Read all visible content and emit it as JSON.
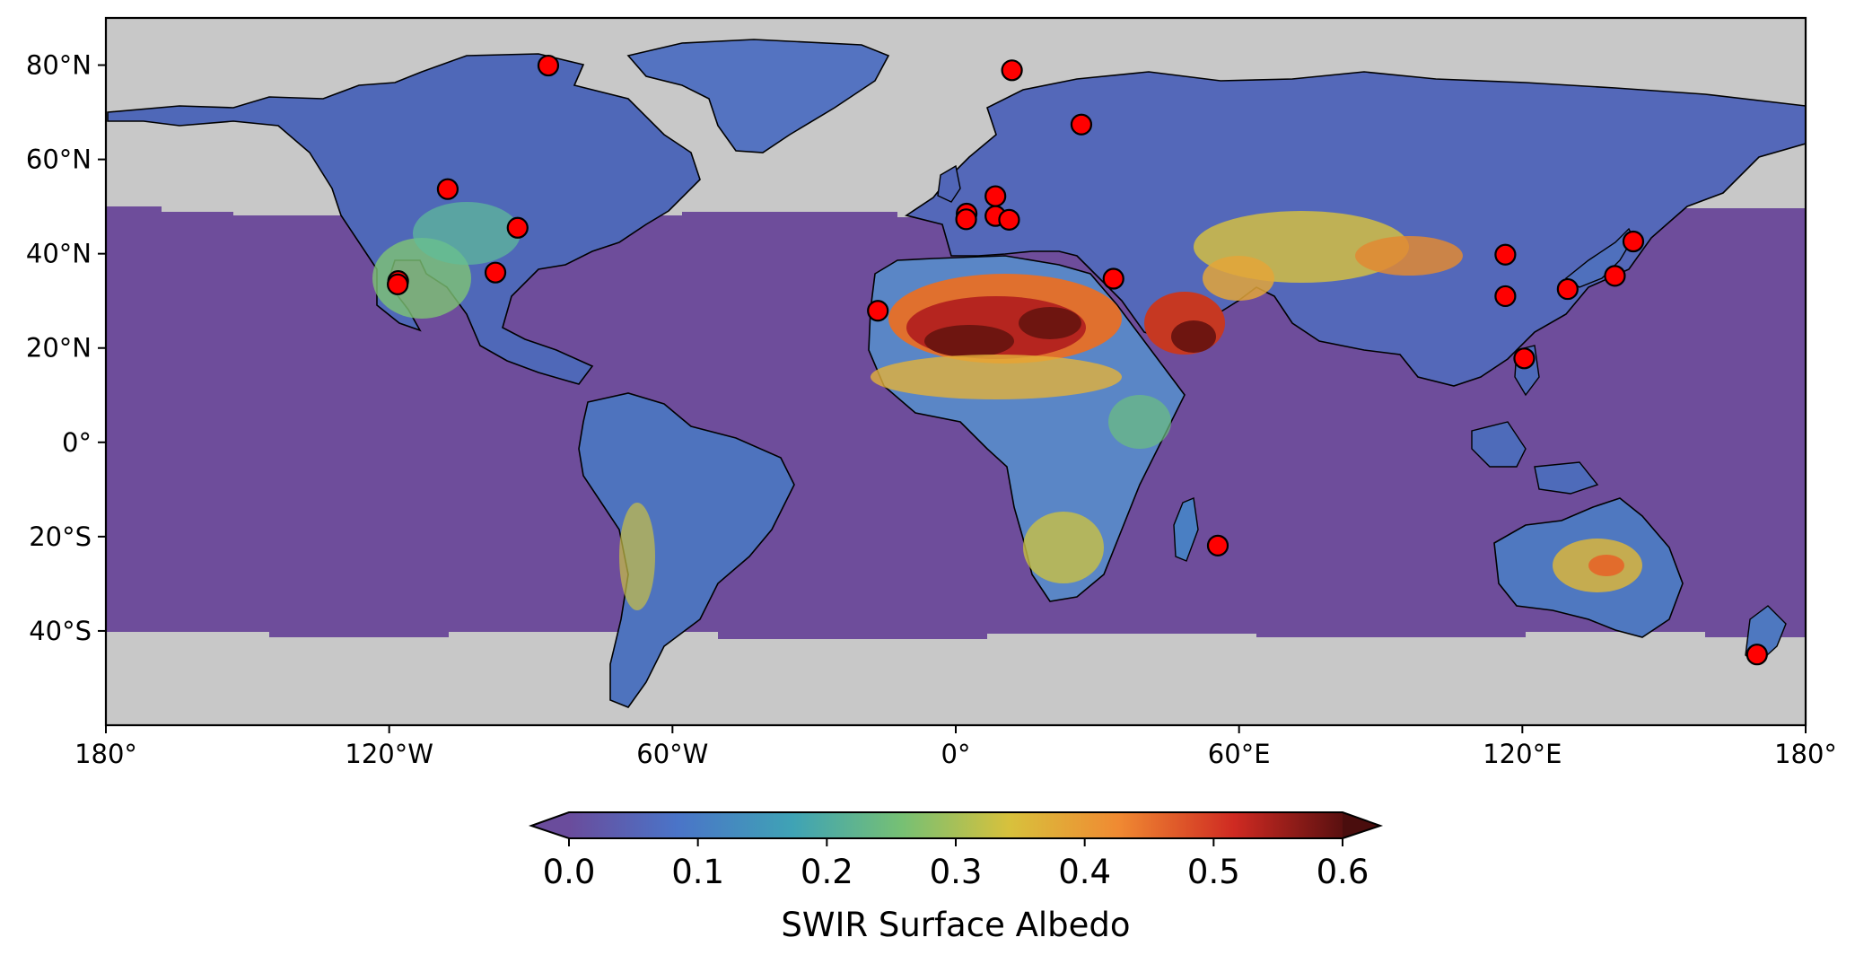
{
  "map": {
    "projection": "PlateCarree",
    "lon_range": [
      -180,
      180
    ],
    "lat_range": [
      -60,
      90
    ],
    "background_color": "#c8c8c8",
    "ocean_color": "#6e4d9b",
    "coastline_color": "#000000",
    "x_ticks": [
      {
        "lon": -180,
        "label": "180°"
      },
      {
        "lon": -120,
        "label": "120°W"
      },
      {
        "lon": -60,
        "label": "60°W"
      },
      {
        "lon": 0,
        "label": "0°"
      },
      {
        "lon": 60,
        "label": "60°E"
      },
      {
        "lon": 120,
        "label": "120°E"
      },
      {
        "lon": 180,
        "label": "180°"
      }
    ],
    "y_ticks": [
      {
        "lat": 80,
        "label": "80°N"
      },
      {
        "lat": 60,
        "label": "60°N"
      },
      {
        "lat": 40,
        "label": "40°N"
      },
      {
        "lat": 20,
        "label": "20°N"
      },
      {
        "lat": 0,
        "label": "0°"
      },
      {
        "lat": -20,
        "label": "20°S"
      },
      {
        "lat": -40,
        "label": "40°S"
      }
    ],
    "site_marker_color": "#ff0000",
    "sites": [
      {
        "lon": -86.3,
        "lat": 79.9
      },
      {
        "lon": -107.6,
        "lat": 53.7
      },
      {
        "lon": -118.1,
        "lat": 34.2
      },
      {
        "lon": -118.2,
        "lat": 33.5
      },
      {
        "lon": -92.8,
        "lat": 45.5
      },
      {
        "lon": -97.5,
        "lat": 36.0
      },
      {
        "lon": 11.9,
        "lat": 78.9
      },
      {
        "lon": 26.6,
        "lat": 67.4
      },
      {
        "lon": 2.3,
        "lat": 48.5
      },
      {
        "lon": 2.2,
        "lat": 47.3
      },
      {
        "lon": 8.4,
        "lat": 52.2
      },
      {
        "lon": 8.4,
        "lat": 48.0
      },
      {
        "lon": 11.3,
        "lat": 47.2
      },
      {
        "lon": 33.4,
        "lat": 34.7
      },
      {
        "lon": -16.5,
        "lat": 27.9
      },
      {
        "lon": 55.5,
        "lat": -21.9
      },
      {
        "lon": 116.4,
        "lat": 39.8
      },
      {
        "lon": 116.4,
        "lat": 31.0
      },
      {
        "lon": 129.6,
        "lat": 32.5
      },
      {
        "lon": 139.6,
        "lat": 35.3
      },
      {
        "lon": 143.5,
        "lat": 42.6
      },
      {
        "lon": 120.4,
        "lat": 17.8
      },
      {
        "lon": 169.7,
        "lat": -45.0
      }
    ]
  },
  "colorbar": {
    "label": "SWIR Surface Albedo",
    "min": 0.0,
    "max": 0.6,
    "extend": "both",
    "ticks": [
      "0.0",
      "0.1",
      "0.2",
      "0.3",
      "0.4",
      "0.5",
      "0.6"
    ],
    "colors": [
      "#6a4c9c",
      "#4a74c8",
      "#3fa3b5",
      "#76c074",
      "#d8c13c",
      "#f08a32",
      "#cf2a22",
      "#5a1010"
    ]
  }
}
